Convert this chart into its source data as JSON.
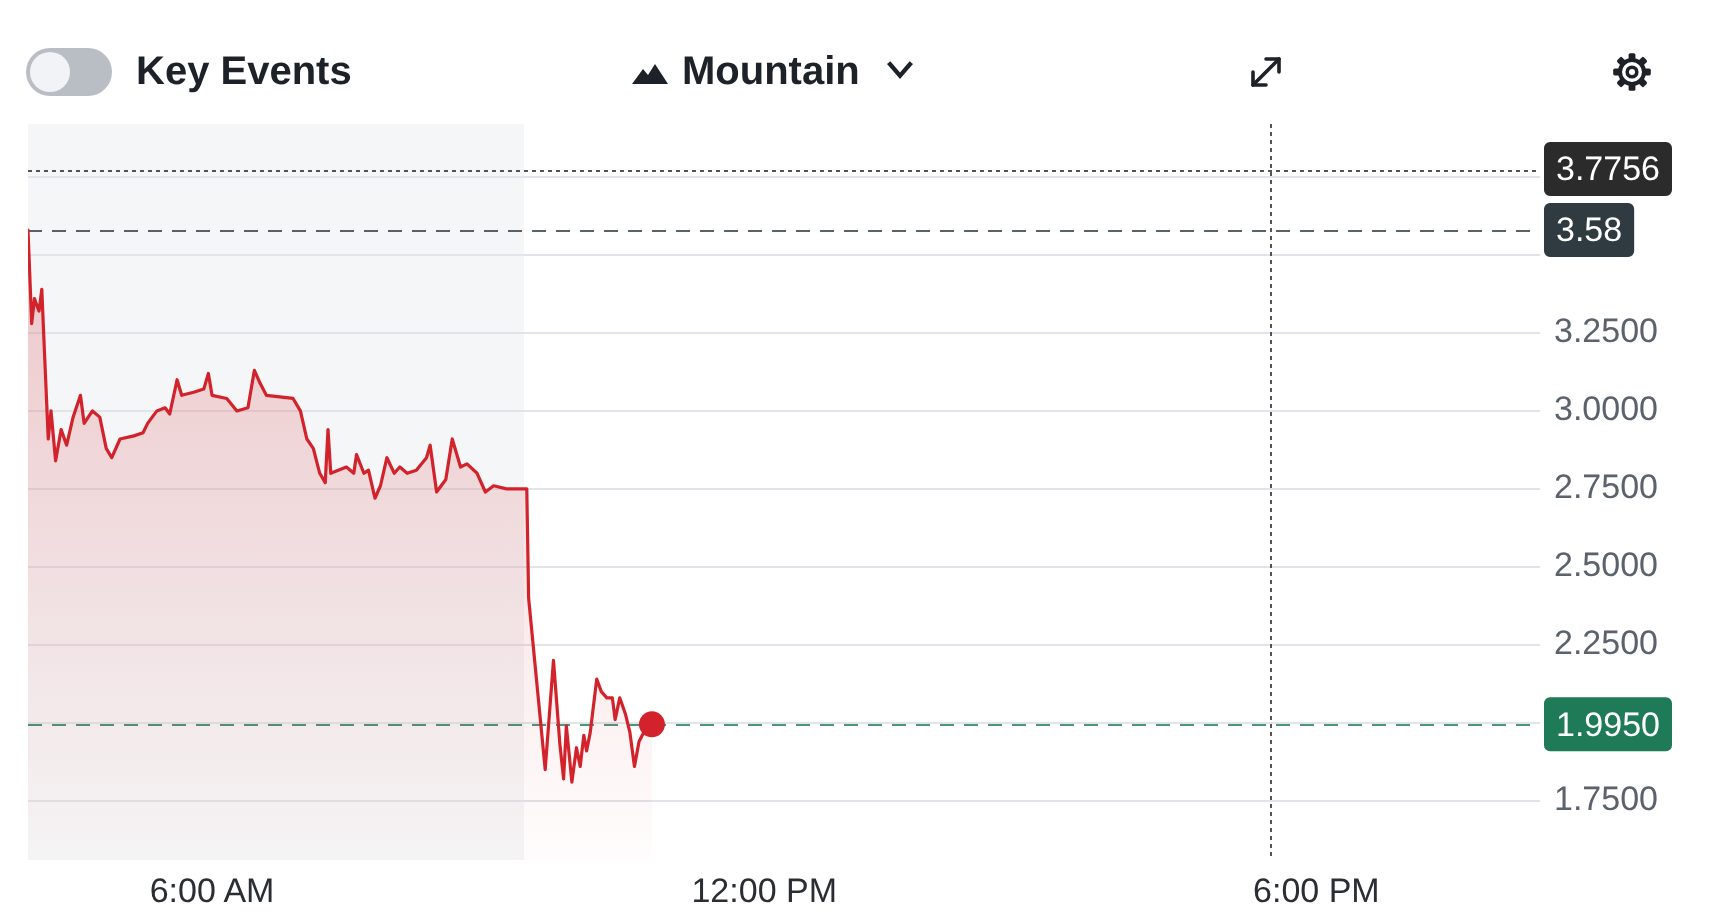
{
  "chart_data": {
    "type": "area",
    "annotations": [
      "Key Events",
      "Mountain"
    ],
    "xlim": [
      4,
      20.43
    ],
    "xticks": [
      {
        "value": 6,
        "label": "6:00 AM"
      },
      {
        "value": 12,
        "label": "12:00 PM"
      },
      {
        "value": 18,
        "label": "6:00 PM"
      }
    ],
    "ylim": [
      1.56,
      3.92
    ],
    "yticks": [
      {
        "value": 1.75,
        "label": "1.7500"
      },
      {
        "value": 2,
        "label": null
      },
      {
        "value": 2.25,
        "label": "2.2500"
      },
      {
        "value": 2.5,
        "label": "2.5000"
      },
      {
        "value": 2.75,
        "label": "2.7500"
      },
      {
        "value": 3,
        "label": "3.0000"
      },
      {
        "value": 3.25,
        "label": "3.2500"
      },
      {
        "value": 3.5,
        "label": null
      },
      {
        "value": 3.75,
        "label": null
      }
    ],
    "grid": "y",
    "marker": "none",
    "series": [
      {
        "color": "#d2222b",
        "x": [
          4.0,
          4.04,
          4.07,
          4.12,
          4.15,
          4.17,
          4.22,
          4.25,
          4.3,
          4.36,
          4.42,
          4.49,
          4.57,
          4.61,
          4.7,
          4.78,
          4.85,
          4.91,
          5.0,
          5.15,
          5.25,
          5.3,
          5.4,
          5.49,
          5.54,
          5.62,
          5.67,
          5.8,
          5.91,
          5.96,
          6.0,
          6.16,
          6.27,
          6.39,
          6.46,
          6.52,
          6.59,
          6.88,
          6.96,
          7.03,
          7.1,
          7.17,
          7.23,
          7.26,
          7.29,
          7.46,
          7.54,
          7.57,
          7.65,
          7.7,
          7.77,
          7.83,
          7.9,
          7.98,
          8.04,
          8.12,
          8.22,
          8.33,
          8.37,
          8.44,
          8.54,
          8.61,
          8.7,
          8.77,
          8.88,
          8.97,
          9.06,
          9.2,
          9.42,
          9.44,
          9.62,
          9.71,
          9.78,
          9.82,
          9.85,
          9.91,
          9.96,
          10.0,
          10.04,
          10.07,
          10.11,
          10.18,
          10.23,
          10.29,
          10.35,
          10.38,
          10.43,
          10.49,
          10.54,
          10.59,
          10.64,
          10.71,
          10.78
        ],
        "values": [
          3.58,
          3.28,
          3.36,
          3.32,
          3.39,
          3.25,
          2.91,
          3.0,
          2.84,
          2.94,
          2.89,
          2.98,
          3.05,
          2.96,
          3.0,
          2.98,
          2.88,
          2.85,
          2.91,
          2.92,
          2.93,
          2.96,
          3.0,
          3.01,
          2.99,
          3.1,
          3.05,
          3.06,
          3.07,
          3.12,
          3.05,
          3.04,
          3.0,
          3.01,
          3.13,
          3.09,
          3.05,
          3.04,
          3.0,
          2.91,
          2.88,
          2.8,
          2.77,
          2.94,
          2.8,
          2.82,
          2.8,
          2.86,
          2.8,
          2.81,
          2.72,
          2.76,
          2.85,
          2.8,
          2.82,
          2.8,
          2.81,
          2.85,
          2.89,
          2.74,
          2.78,
          2.91,
          2.82,
          2.83,
          2.8,
          2.74,
          2.76,
          2.75,
          2.75,
          2.4,
          1.85,
          2.2,
          1.93,
          1.82,
          1.99,
          1.81,
          1.92,
          1.86,
          1.96,
          1.91,
          1.97,
          2.14,
          2.1,
          2.08,
          2.08,
          2.01,
          2.08,
          2.03,
          1.97,
          1.86,
          1.94,
          1.98,
          1.995
        ]
      },
      {
        "type": "scatter",
        "color": "#d2222b",
        "marker": "circle",
        "x": [
          10.78
        ],
        "values": [
          1.995
        ]
      }
    ],
    "ref_lines": [
      {
        "axis": "y",
        "value": 3.7756,
        "label": "3.7756",
        "color": "#2b2b2b",
        "line_style": "dotted"
      },
      {
        "axis": "y",
        "value": 3.58,
        "label": "3.58",
        "color": "#2f3b41",
        "line_style": "dashed"
      },
      {
        "axis": "y",
        "value": 1.995,
        "label": "1.9950",
        "color": "#1f7a57",
        "line_style": "dashed"
      },
      {
        "axis": "x",
        "value": 17.5,
        "color": "#2b2b2b",
        "line_style": "dotted"
      }
    ],
    "bands": [
      {
        "axis": "x",
        "from": 4,
        "to": 9.39,
        "color": "#f5f6f7"
      }
    ]
  }
}
